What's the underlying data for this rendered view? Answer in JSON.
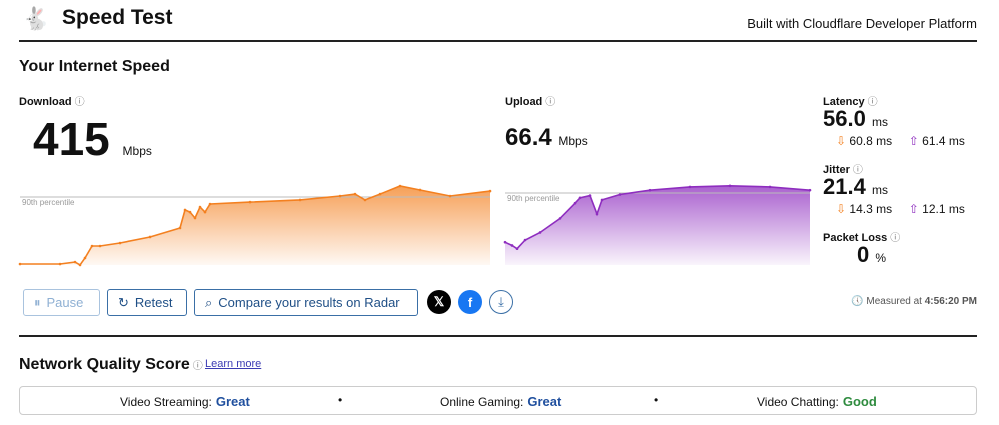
{
  "header": {
    "title": "Speed Test",
    "built_with": "Built with Cloudflare Developer Platform",
    "logo_icon": "rabbit-icon"
  },
  "section_title": "Your Internet Speed",
  "download": {
    "label": "Download",
    "value": "415",
    "unit": "Mbps",
    "percentile_label": "90th percentile",
    "color": "#f38020"
  },
  "upload": {
    "label": "Upload",
    "value": "66.4",
    "unit": "Mbps",
    "percentile_label": "90th percentile",
    "color": "#8e2dbf"
  },
  "latency": {
    "label": "Latency",
    "value": "56.0",
    "unit": "ms",
    "down": "60.8 ms",
    "up": "61.4 ms"
  },
  "jitter": {
    "label": "Jitter",
    "value": "21.4",
    "unit": "ms",
    "down": "14.3 ms",
    "up": "12.1 ms"
  },
  "packet_loss": {
    "label": "Packet Loss",
    "value": "0",
    "unit": "%"
  },
  "buttons": {
    "pause": "Pause",
    "retest": "Retest",
    "compare": "Compare your results on Radar"
  },
  "measured": {
    "label": "Measured at",
    "time": "4:56:20 PM"
  },
  "network_quality": {
    "title": "Network Quality Score",
    "learn_more": "Learn more",
    "items": [
      {
        "label": "Video Streaming:",
        "value": "Great",
        "color": "#1f4f9e"
      },
      {
        "label": "Online Gaming:",
        "value": "Great",
        "color": "#1f4f9e"
      },
      {
        "label": "Video Chatting:",
        "value": "Good",
        "color": "#2e8b3e"
      }
    ]
  },
  "chart_data": [
    {
      "type": "area",
      "series": [
        {
          "values": [
            6,
            6,
            18,
            0,
            43,
            116,
            116,
            134,
            171,
            226,
            336,
            323,
            287,
            354,
            323,
            372,
            384,
            397,
            421,
            433,
            397,
            433,
            482,
            458,
            421,
            451
          ]
        }
      ],
      "percentile_90": 415,
      "unit": "Mbps"
    },
    {
      "type": "area",
      "series": [
        {
          "values": [
            21,
            18,
            15,
            23,
            30,
            43,
            57,
            62,
            64,
            47,
            60,
            65,
            69,
            72,
            73,
            72,
            69
          ]
        }
      ],
      "percentile_90": 66.4,
      "unit": "Mbps"
    }
  ]
}
